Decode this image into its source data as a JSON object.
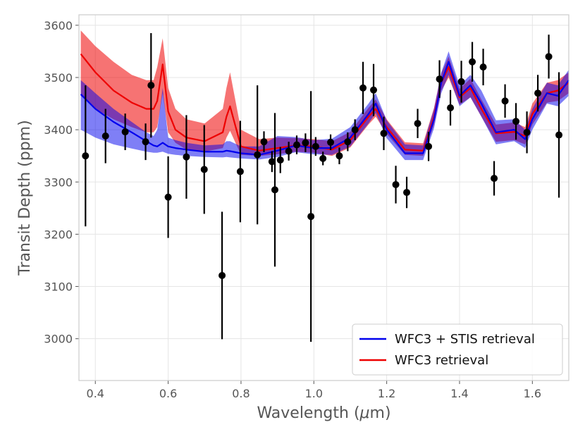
{
  "chart_data": {
    "type": "line",
    "xlabel": "Wavelength (",
    "xlabel_unit_symbol": "μ",
    "xlabel_unit": "m)",
    "ylabel": "Transit Depth (ppm)",
    "xlim": [
      0.355,
      1.7
    ],
    "ylim": [
      2920,
      3620
    ],
    "xticks": [
      0.4,
      0.6,
      0.8,
      1.0,
      1.2,
      1.4,
      1.6
    ],
    "xtick_labels": [
      "0.4",
      "0.6",
      "0.8",
      "1.0",
      "1.2",
      "1.4",
      "1.6"
    ],
    "yticks": [
      3000,
      3100,
      3200,
      3300,
      3400,
      3500,
      3600
    ],
    "ytick_labels": [
      "3000",
      "3100",
      "3200",
      "3300",
      "3400",
      "3500",
      "3600"
    ],
    "grid": true,
    "legend_position": "bottom-right",
    "colors": {
      "blue": "#0000ee",
      "red": "#ee0000",
      "points": "#000000",
      "frame": "#cccccc",
      "grid": "#e5e5e5"
    },
    "series": [
      {
        "name": "WFC3 + STIS retrieval",
        "color": "#0000ee",
        "x": [
          0.36,
          0.4,
          0.45,
          0.5,
          0.54,
          0.56,
          0.57,
          0.585,
          0.6,
          0.62,
          0.65,
          0.7,
          0.75,
          0.76,
          0.77,
          0.8,
          0.85,
          0.9,
          0.95,
          1.0,
          1.05,
          1.1,
          1.15,
          1.17,
          1.2,
          1.25,
          1.3,
          1.33,
          1.35,
          1.37,
          1.4,
          1.43,
          1.46,
          1.5,
          1.55,
          1.58,
          1.6,
          1.64,
          1.67,
          1.7
        ],
        "values": [
          3468,
          3440,
          3415,
          3395,
          3378,
          3370,
          3368,
          3375,
          3368,
          3365,
          3362,
          3358,
          3358,
          3360,
          3359,
          3355,
          3352,
          3360,
          3370,
          3365,
          3365,
          3385,
          3430,
          3450,
          3400,
          3355,
          3355,
          3420,
          3490,
          3530,
          3465,
          3485,
          3450,
          3395,
          3400,
          3382,
          3420,
          3470,
          3465,
          3495
        ],
        "lower": [
          3400,
          3385,
          3372,
          3364,
          3358,
          3356,
          3356,
          3358,
          3354,
          3352,
          3350,
          3348,
          3347,
          3348,
          3347,
          3345,
          3343,
          3348,
          3357,
          3353,
          3352,
          3368,
          3412,
          3432,
          3384,
          3342,
          3342,
          3403,
          3470,
          3505,
          3445,
          3462,
          3425,
          3372,
          3378,
          3365,
          3400,
          3450,
          3445,
          3465
        ],
        "upper": [
          3495,
          3470,
          3440,
          3415,
          3395,
          3388,
          3400,
          3480,
          3385,
          3380,
          3375,
          3370,
          3372,
          3378,
          3378,
          3368,
          3368,
          3388,
          3386,
          3380,
          3383,
          3405,
          3450,
          3470,
          3418,
          3372,
          3370,
          3440,
          3510,
          3550,
          3485,
          3505,
          3475,
          3418,
          3420,
          3400,
          3440,
          3490,
          3485,
          3515
        ]
      },
      {
        "name": "WFC3 retrieval",
        "color": "#ee0000",
        "x": [
          0.36,
          0.4,
          0.45,
          0.5,
          0.54,
          0.56,
          0.57,
          0.585,
          0.6,
          0.62,
          0.65,
          0.7,
          0.75,
          0.76,
          0.77,
          0.8,
          0.85,
          0.9,
          0.95,
          1.0,
          1.05,
          1.1,
          1.15,
          1.17,
          1.2,
          1.25,
          1.3,
          1.33,
          1.35,
          1.37,
          1.4,
          1.43,
          1.46,
          1.5,
          1.55,
          1.58,
          1.6,
          1.64,
          1.67,
          1.7
        ],
        "values": [
          3545,
          3510,
          3475,
          3452,
          3440,
          3440,
          3455,
          3525,
          3435,
          3400,
          3385,
          3378,
          3395,
          3425,
          3445,
          3368,
          3360,
          3365,
          3370,
          3368,
          3362,
          3380,
          3425,
          3440,
          3405,
          3362,
          3360,
          3425,
          3490,
          3520,
          3462,
          3480,
          3440,
          3393,
          3396,
          3388,
          3430,
          3470,
          3475,
          3490
        ],
        "lower": [
          3465,
          3440,
          3420,
          3405,
          3395,
          3395,
          3405,
          3470,
          3395,
          3375,
          3362,
          3358,
          3365,
          3385,
          3398,
          3352,
          3350,
          3353,
          3358,
          3356,
          3350,
          3366,
          3410,
          3425,
          3392,
          3352,
          3350,
          3410,
          3475,
          3500,
          3448,
          3462,
          3425,
          3377,
          3380,
          3372,
          3410,
          3452,
          3455,
          3470
        ],
        "upper": [
          3590,
          3560,
          3530,
          3505,
          3495,
          3495,
          3520,
          3575,
          3480,
          3440,
          3420,
          3412,
          3440,
          3480,
          3510,
          3400,
          3382,
          3385,
          3384,
          3382,
          3378,
          3396,
          3442,
          3458,
          3420,
          3376,
          3374,
          3442,
          3508,
          3540,
          3478,
          3498,
          3458,
          3410,
          3414,
          3405,
          3450,
          3490,
          3495,
          3510
        ]
      }
    ],
    "observations": {
      "name": "data",
      "x": [
        0.373,
        0.428,
        0.482,
        0.538,
        0.553,
        0.6,
        0.65,
        0.699,
        0.748,
        0.798,
        0.845,
        0.863,
        0.885,
        0.893,
        0.908,
        0.931,
        0.953,
        0.977,
        0.992,
        1.005,
        1.025,
        1.046,
        1.07,
        1.093,
        1.113,
        1.135,
        1.164,
        1.192,
        1.225,
        1.255,
        1.285,
        1.315,
        1.345,
        1.375,
        1.405,
        1.435,
        1.465,
        1.495,
        1.525,
        1.555,
        1.585,
        1.615,
        1.645,
        1.673
      ],
      "y": [
        3350,
        3388,
        3396,
        3377,
        3485,
        3271,
        3348,
        3324,
        3121,
        3320,
        3352,
        3377,
        3339,
        3285,
        3342,
        3359,
        3371,
        3375,
        3234,
        3368,
        3345,
        3376,
        3350,
        3377,
        3400,
        3480,
        3476,
        3393,
        3295,
        3280,
        3412,
        3368,
        3497,
        3442,
        3492,
        3530,
        3520,
        3307,
        3455,
        3416,
        3395,
        3470,
        3540,
        3390
      ],
      "err": [
        135,
        52,
        35,
        35,
        100,
        78,
        80,
        85,
        122,
        97,
        133,
        20,
        20,
        147,
        25,
        18,
        18,
        18,
        240,
        18,
        13,
        15,
        16,
        18,
        20,
        50,
        50,
        32,
        36,
        30,
        28,
        28,
        36,
        34,
        40,
        38,
        35,
        33,
        32,
        35,
        40,
        35,
        42,
        120
      ]
    }
  }
}
